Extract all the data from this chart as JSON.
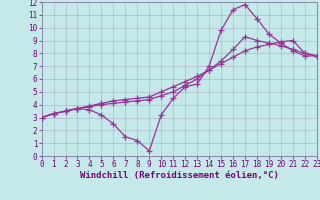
{
  "xlabel": "Windchill (Refroidissement éolien,°C)",
  "xlim": [
    0,
    23
  ],
  "ylim": [
    0,
    12
  ],
  "xticks": [
    0,
    1,
    2,
    3,
    4,
    5,
    6,
    7,
    8,
    9,
    10,
    11,
    12,
    13,
    14,
    15,
    16,
    17,
    18,
    19,
    20,
    21,
    22,
    23
  ],
  "yticks": [
    0,
    1,
    2,
    3,
    4,
    5,
    6,
    7,
    8,
    9,
    10,
    11,
    12
  ],
  "background_color": "#c5e8e8",
  "grid_color": "#b0b8cc",
  "line_color": "#993399",
  "line1_x": [
    0,
    1,
    2,
    3,
    4,
    5,
    6,
    7,
    8,
    9,
    10,
    11,
    12,
    13,
    14,
    15,
    16,
    17,
    18,
    19,
    20,
    21,
    22,
    23
  ],
  "line1_y": [
    3.0,
    3.3,
    3.5,
    3.7,
    3.85,
    4.0,
    4.1,
    4.2,
    4.3,
    4.4,
    4.7,
    5.0,
    5.5,
    6.0,
    6.7,
    7.4,
    8.3,
    9.3,
    9.0,
    8.8,
    8.6,
    8.3,
    8.0,
    7.8
  ],
  "line2_x": [
    0,
    1,
    2,
    3,
    4,
    5,
    6,
    7,
    8,
    9,
    10,
    11,
    12,
    13,
    14,
    15,
    16,
    17,
    18,
    19,
    20,
    21,
    22,
    23
  ],
  "line2_y": [
    3.0,
    3.3,
    3.5,
    3.7,
    3.6,
    3.2,
    2.5,
    1.5,
    1.2,
    0.4,
    3.2,
    4.5,
    5.4,
    5.6,
    7.0,
    9.8,
    11.4,
    11.8,
    10.7,
    9.5,
    8.8,
    8.2,
    7.8,
    7.8
  ],
  "line3_x": [
    0,
    1,
    2,
    3,
    4,
    5,
    6,
    7,
    8,
    9,
    10,
    11,
    12,
    13,
    14,
    15,
    16,
    17,
    18,
    19,
    20,
    21,
    22,
    23
  ],
  "line3_y": [
    3.0,
    3.3,
    3.5,
    3.7,
    3.9,
    4.1,
    4.3,
    4.4,
    4.5,
    4.6,
    5.0,
    5.4,
    5.8,
    6.2,
    6.7,
    7.2,
    7.7,
    8.2,
    8.5,
    8.7,
    8.9,
    9.0,
    8.0,
    7.8
  ],
  "marker": "+",
  "markersize": 4,
  "markeredgewidth": 0.9,
  "linewidth": 0.9,
  "tick_fontsize": 5.5,
  "label_fontsize": 6.5
}
